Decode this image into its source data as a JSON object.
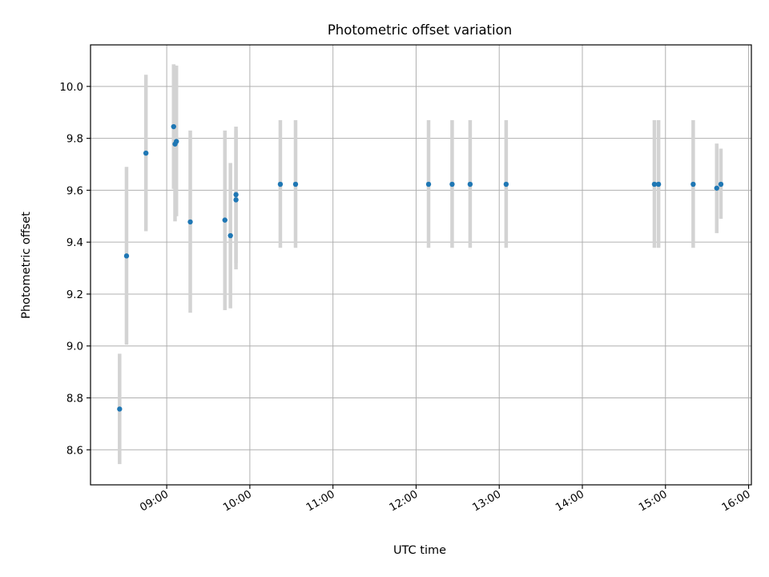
{
  "chart_data": {
    "type": "scatter",
    "title": "Photometric offset variation",
    "xlabel": "UTC time",
    "ylabel": "Photometric offset",
    "xlim": [
      "08:05",
      "16:02"
    ],
    "ylim": [
      8.465,
      10.16
    ],
    "grid": true,
    "x_ticks": [
      "09:00",
      "10:00",
      "11:00",
      "12:00",
      "13:00",
      "14:00",
      "15:00",
      "16:00"
    ],
    "y_ticks": [
      "8.6",
      "8.8",
      "9.0",
      "9.2",
      "9.4",
      "9.6",
      "9.8",
      "10.0"
    ],
    "colors": {
      "point": "#1f77b4",
      "errorbar": "#d3d3d3",
      "grid": "#b0b0b0"
    },
    "series": [
      {
        "points": [
          {
            "x": "08:26",
            "y": 8.757,
            "ylow": 8.545,
            "yhigh": 8.97
          },
          {
            "x": "08:31",
            "y": 9.347,
            "ylow": 9.005,
            "yhigh": 9.69
          },
          {
            "x": "08:45",
            "y": 9.743,
            "ylow": 9.442,
            "yhigh": 10.045
          },
          {
            "x": "09:05",
            "y": 9.845,
            "ylow": 9.605,
            "yhigh": 10.085
          },
          {
            "x": "09:06",
            "y": 9.778,
            "ylow": 9.48,
            "yhigh": 10.08
          },
          {
            "x": "09:07",
            "y": 9.788,
            "ylow": 9.5,
            "yhigh": 10.08
          },
          {
            "x": "09:17",
            "y": 9.478,
            "ylow": 9.128,
            "yhigh": 9.83
          },
          {
            "x": "09:42",
            "y": 9.485,
            "ylow": 9.138,
            "yhigh": 9.83
          },
          {
            "x": "09:46",
            "y": 9.425,
            "ylow": 9.145,
            "yhigh": 9.705
          },
          {
            "x": "09:50",
            "y": 9.563,
            "ylow": 9.295,
            "yhigh": 9.83
          },
          {
            "x": "09:50",
            "y": 9.583,
            "ylow": 9.32,
            "yhigh": 9.845
          },
          {
            "x": "10:22",
            "y": 9.623,
            "ylow": 9.378,
            "yhigh": 9.87
          },
          {
            "x": "10:33",
            "y": 9.623,
            "ylow": 9.378,
            "yhigh": 9.87
          },
          {
            "x": "12:09",
            "y": 9.623,
            "ylow": 9.378,
            "yhigh": 9.87
          },
          {
            "x": "12:26",
            "y": 9.623,
            "ylow": 9.378,
            "yhigh": 9.87
          },
          {
            "x": "12:39",
            "y": 9.623,
            "ylow": 9.378,
            "yhigh": 9.87
          },
          {
            "x": "13:05",
            "y": 9.623,
            "ylow": 9.378,
            "yhigh": 9.87
          },
          {
            "x": "14:52",
            "y": 9.623,
            "ylow": 9.378,
            "yhigh": 9.87
          },
          {
            "x": "14:55",
            "y": 9.623,
            "ylow": 9.378,
            "yhigh": 9.87
          },
          {
            "x": "15:20",
            "y": 9.623,
            "ylow": 9.378,
            "yhigh": 9.87
          },
          {
            "x": "15:37",
            "y": 9.608,
            "ylow": 9.435,
            "yhigh": 9.78
          },
          {
            "x": "15:40",
            "y": 9.623,
            "ylow": 9.49,
            "yhigh": 9.76
          }
        ]
      }
    ]
  }
}
